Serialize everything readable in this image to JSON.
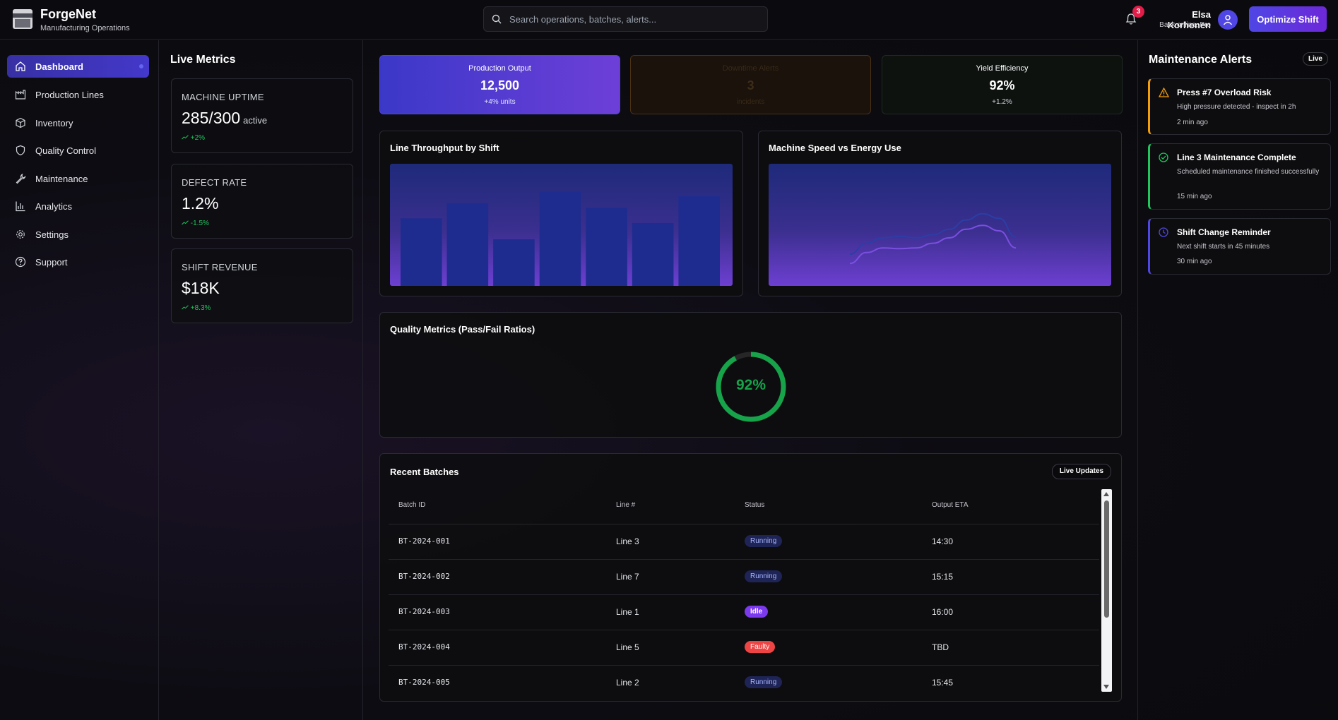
{
  "header": {
    "brand": "ForgeNet",
    "subtitle": "Manufacturing Operations",
    "search_placeholder": "Search operations, batches, alerts...",
    "notification_count": "3",
    "user_name": "Elsa Korhonen",
    "user_status": "Back online, Pro",
    "optimize_label": "Optimize Shift",
    "accent": "#5b3fe0"
  },
  "sidebar": {
    "items": [
      {
        "label": "Dashboard",
        "icon": "home-icon"
      },
      {
        "label": "Production Lines",
        "icon": "factory-icon"
      },
      {
        "label": "Inventory",
        "icon": "box-icon"
      },
      {
        "label": "Quality Control",
        "icon": "shield-icon"
      },
      {
        "label": "Maintenance",
        "icon": "wrench-icon"
      },
      {
        "label": "Analytics",
        "icon": "bar-chart-icon"
      },
      {
        "label": "Settings",
        "icon": "gear-icon"
      },
      {
        "label": "Support",
        "icon": "help-icon"
      }
    ]
  },
  "live_metrics": {
    "title": "Live Metrics",
    "cards": [
      {
        "label": "MACHINE UPTIME",
        "value": "285/300",
        "suffix": "active",
        "trend": "+2%"
      },
      {
        "label": "DEFECT RATE",
        "value": "1.2%",
        "suffix": "",
        "trend": "-1.5%"
      },
      {
        "label": "SHIFT REVENUE",
        "value": "$18K",
        "suffix": "",
        "trend": "+8.3%"
      }
    ]
  },
  "kpis": [
    {
      "label": "Production Output",
      "value": "12,500",
      "sub": "+4% units"
    },
    {
      "label": "Downtime Alerts",
      "value": "3",
      "sub": "incidents"
    },
    {
      "label": "Yield Efficiency",
      "value": "92%",
      "sub": "+1.2%"
    }
  ],
  "throughput": {
    "title": "Line Throughput by Shift",
    "chart_data": {
      "type": "bar",
      "categories": [
        "",
        "",
        "",
        "",
        "",
        "",
        ""
      ],
      "values": [
        58,
        71,
        40,
        81,
        67,
        54,
        77
      ],
      "ylim": [
        0,
        100
      ],
      "grid": false
    }
  },
  "speed_energy": {
    "title": "Machine Speed vs Energy Use",
    "chart_data": {
      "type": "line",
      "x": [
        0,
        1,
        2,
        3,
        4,
        5,
        6,
        7,
        8,
        9,
        10
      ],
      "series": [
        {
          "values": [
            20,
            34,
            41,
            43,
            41,
            45,
            52,
            64,
            72,
            66,
            42
          ]
        },
        {
          "values": [
            8,
            22,
            28,
            27,
            28,
            34,
            41,
            52,
            57,
            50,
            28
          ]
        }
      ],
      "ylim": [
        0,
        100
      ],
      "grid": false
    }
  },
  "quality": {
    "title": "Quality Metrics (Pass/Fail Ratios)",
    "pass_percent": 92,
    "pass_label": "92%",
    "pass_color": "#16a34a"
  },
  "batches": {
    "title": "Recent Batches",
    "live_label": "Live Updates",
    "columns": [
      "Batch ID",
      "Line #",
      "Status",
      "Output ETA"
    ],
    "rows": [
      {
        "id": "BT-2024-001",
        "line": "Line 3",
        "status": "Running",
        "eta": "14:30"
      },
      {
        "id": "BT-2024-002",
        "line": "Line 7",
        "status": "Running",
        "eta": "15:15"
      },
      {
        "id": "BT-2024-003",
        "line": "Line 1",
        "status": "Idle",
        "eta": "16:00"
      },
      {
        "id": "BT-2024-004",
        "line": "Line 5",
        "status": "Faulty",
        "eta": "TBD"
      },
      {
        "id": "BT-2024-005",
        "line": "Line 2",
        "status": "Running",
        "eta": "15:45"
      }
    ]
  },
  "alerts": {
    "title": "Maintenance Alerts",
    "live_label": "Live",
    "items": [
      {
        "title": "Press #7 Overload Risk",
        "desc": "High pressure detected - inspect in 2h",
        "time": "2 min ago",
        "icon": "warning-icon",
        "color": "#f59e0b"
      },
      {
        "title": "Line 3 Maintenance Complete",
        "desc": "Scheduled maintenance finished successfully",
        "time": "15 min ago",
        "icon": "check-circle-icon",
        "color": "#22c55e"
      },
      {
        "title": "Shift Change Reminder",
        "desc": "Next shift starts in 45 minutes",
        "time": "30 min ago",
        "icon": "clock-icon",
        "color": "#4f46e5"
      }
    ]
  }
}
